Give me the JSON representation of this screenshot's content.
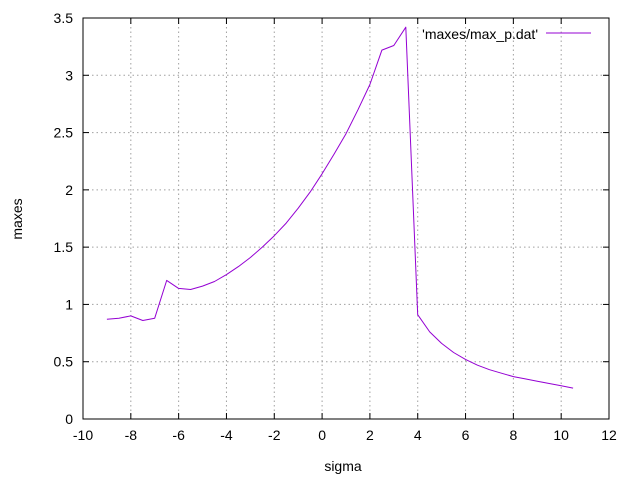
{
  "chart_data": {
    "type": "line",
    "title": "",
    "xlabel": "sigma",
    "ylabel": "maxes",
    "xlim": [
      -10,
      12
    ],
    "ylim": [
      0,
      3.5
    ],
    "x_ticks": [
      "-10",
      "-8",
      "-6",
      "-4",
      "-2",
      "0",
      "2",
      "4",
      "6",
      "8",
      "10",
      "12"
    ],
    "y_ticks": [
      "0",
      "0.5",
      "1",
      "1.5",
      "2",
      "2.5",
      "3",
      "3.5"
    ],
    "grid": true,
    "legend_position": "top-right",
    "colors": {
      "series": "#9400d3",
      "grid": "#a0a0a0",
      "axis": "#000000"
    },
    "series": [
      {
        "name": "'maxes/max_p.dat'",
        "x": [
          -9.0,
          -8.5,
          -8.0,
          -7.5,
          -7.0,
          -6.5,
          -6.0,
          -5.5,
          -5.0,
          -4.5,
          -4.0,
          -3.5,
          -3.0,
          -2.5,
          -2.0,
          -1.5,
          -1.0,
          -0.5,
          0.0,
          0.5,
          1.0,
          1.5,
          2.0,
          2.5,
          3.0,
          3.5,
          4.0,
          4.5,
          5.0,
          5.5,
          6.0,
          6.5,
          7.0,
          7.5,
          8.0,
          8.5,
          9.0,
          9.5,
          10.0,
          10.5
        ],
        "y": [
          0.87,
          0.88,
          0.9,
          0.86,
          0.88,
          1.21,
          1.14,
          1.13,
          1.16,
          1.2,
          1.26,
          1.33,
          1.41,
          1.5,
          1.6,
          1.71,
          1.84,
          1.98,
          2.14,
          2.31,
          2.49,
          2.7,
          2.92,
          3.22,
          3.26,
          3.42,
          0.91,
          0.76,
          0.66,
          0.58,
          0.52,
          0.47,
          0.43,
          0.4,
          0.37,
          0.35,
          0.33,
          0.31,
          0.29,
          0.27
        ]
      }
    ]
  }
}
